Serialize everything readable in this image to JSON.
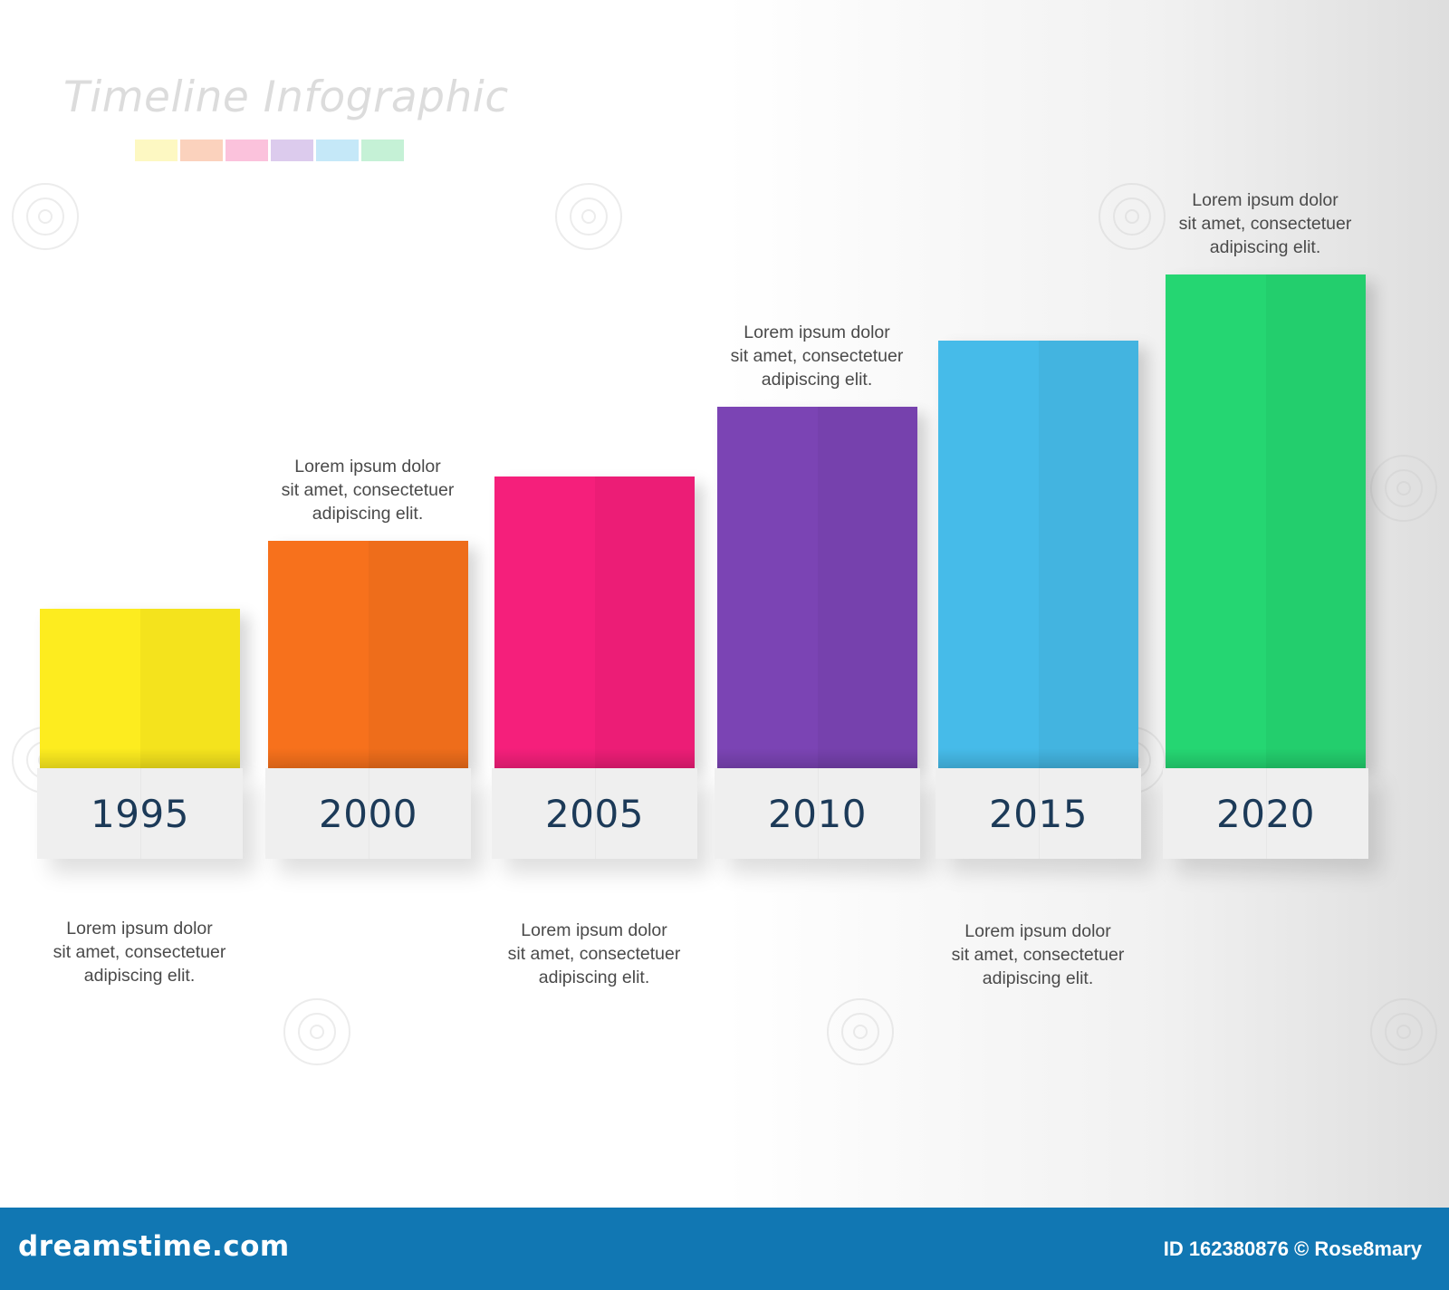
{
  "title": "Timeline Infographic",
  "swatch_colors": [
    "#fdf8c2",
    "#fbd2bd",
    "#fbc2dc",
    "#dccbed",
    "#c5e8f8",
    "#c5f1d6"
  ],
  "timeline": [
    {
      "year": "1995",
      "color": "#fdec1f",
      "height_rank": 1,
      "caption_position": "below",
      "caption": [
        "Lorem ipsum dolor",
        "sit amet, consectetuer",
        "adipiscing elit."
      ]
    },
    {
      "year": "2000",
      "color": "#f7711c",
      "height_rank": 2,
      "caption_position": "above",
      "caption": [
        "Lorem ipsum dolor",
        "sit amet, consectetuer",
        "adipiscing elit."
      ]
    },
    {
      "year": "2005",
      "color": "#f51f7b",
      "height_rank": 3,
      "caption_position": "below",
      "caption": [
        "Lorem ipsum dolor",
        "sit amet, consectetuer",
        "adipiscing elit."
      ]
    },
    {
      "year": "2010",
      "color": "#7b44b4",
      "height_rank": 4,
      "caption_position": "above",
      "caption": [
        "Lorem ipsum dolor",
        "sit amet, consectetuer",
        "adipiscing elit."
      ]
    },
    {
      "year": "2015",
      "color": "#46bbe9",
      "height_rank": 5,
      "caption_position": "below",
      "caption": [
        "Lorem ipsum dolor",
        "sit amet, consectetuer",
        "adipiscing elit."
      ]
    },
    {
      "year": "2020",
      "color": "#25d672",
      "height_rank": 6,
      "caption_position": "above",
      "caption": [
        "Lorem ipsum dolor",
        "sit amet, consectetuer",
        "adipiscing elit."
      ]
    }
  ],
  "footer": {
    "brand": "dreamstime.com",
    "credit": "ID 162380876 © Rose8mary",
    "background": "#1177b3"
  }
}
